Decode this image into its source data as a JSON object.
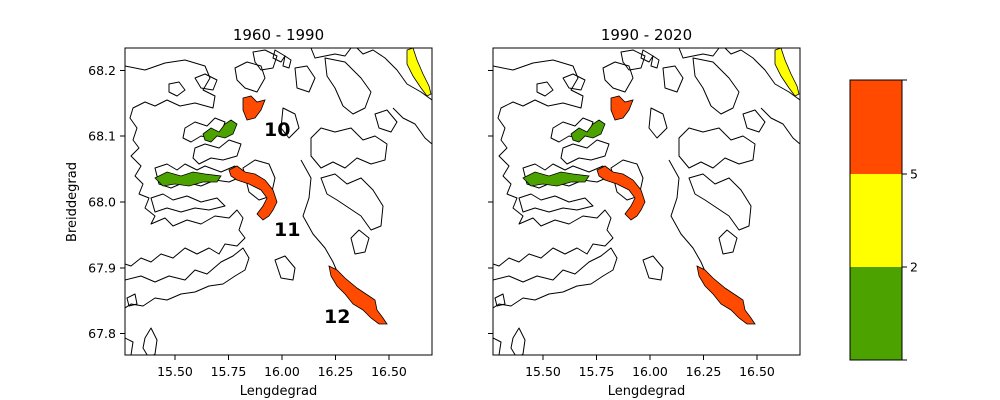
{
  "panels": [
    {
      "title": "1960 - 1990",
      "xlabel": "Lengdegrad",
      "ylabel": "Breiddegrad",
      "region_labels": [
        "10",
        "11",
        "12"
      ]
    },
    {
      "title": "1990 - 2020",
      "xlabel": "Lengdegrad",
      "ylabel": "",
      "region_labels": []
    }
  ],
  "x_ticks": [
    "15.50",
    "15.75",
    "16.00",
    "16.25",
    "16.50"
  ],
  "y_ticks": [
    "68.2",
    "68.1",
    "68.0",
    "67.9",
    "67.8"
  ],
  "colorbar": {
    "bands": [
      {
        "color": "#4ca300",
        "from": 0,
        "to": 2
      },
      {
        "color": "#ffff00",
        "from": 2,
        "to": 5
      },
      {
        "color": "#ff4a00",
        "from": 5,
        "to": 8
      }
    ],
    "tick_labels": [
      "5",
      "2"
    ]
  },
  "region_colors": {
    "green": "#4ca300",
    "orange": "#ff4a00",
    "yellow": "#ffff00"
  }
}
